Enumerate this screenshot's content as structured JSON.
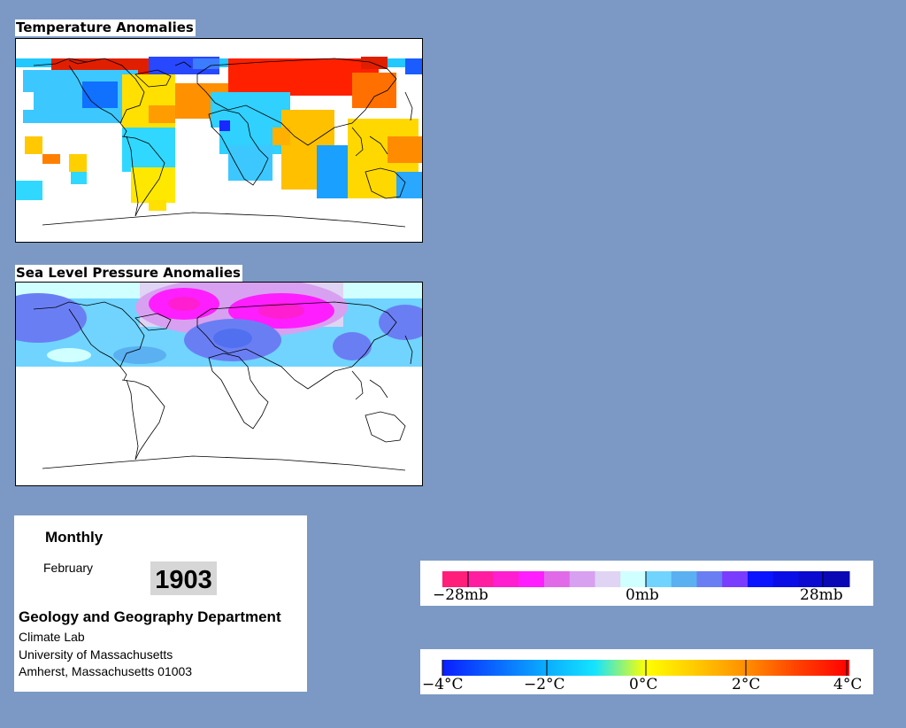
{
  "temperature_map": {
    "title": "Temperature Anomalies"
  },
  "pressure_map": {
    "title": "Sea Level Pressure Anomalies"
  },
  "info": {
    "frequency": "Monthly",
    "month": "February",
    "year": "1903",
    "department": "Geology and Geography Department",
    "lab": "Climate Lab",
    "university": "University of Massachusetts",
    "address": "Amherst, Massachusetts 01003"
  },
  "pressure_legend": {
    "labels": [
      "−28mb",
      "0mb",
      "28mb"
    ],
    "colors": [
      "#ff1e7a",
      "#ff1ea0",
      "#ff1ed0",
      "#ff1eff",
      "#e06ae8",
      "#d8a0f0",
      "#e0d4f4",
      "#d0ffff",
      "#70d4ff",
      "#5ab0f0",
      "#6a7ef4",
      "#7a3cff",
      "#0a14ff",
      "#0a0ee6",
      "#0a0ad0",
      "#0a08b4"
    ]
  },
  "temperature_legend": {
    "labels": [
      "−4°C",
      "−2°C",
      "0°C",
      "2°C",
      "4°C"
    ],
    "gradient": [
      "#0a1eff",
      "#0a64ff",
      "#0aaaff",
      "#14e4ff",
      "#ffff00",
      "#ffc800",
      "#ff8c00",
      "#ff4000",
      "#ff0000"
    ]
  }
}
